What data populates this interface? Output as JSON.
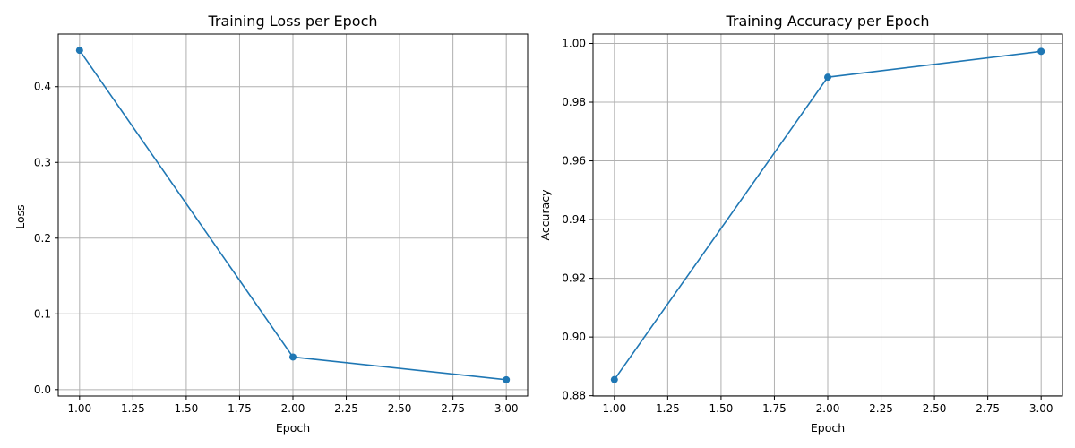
{
  "colors": {
    "line": "#1f77b4",
    "grid": "#b0b0b0"
  },
  "chart_data": [
    {
      "type": "line",
      "title": "Training Loss per Epoch",
      "xlabel": "Epoch",
      "ylabel": "Loss",
      "x": [
        1,
        2,
        3
      ],
      "series": [
        {
          "values": [
            0.448,
            0.043,
            0.013
          ]
        }
      ],
      "xlim": [
        0.9,
        3.1
      ],
      "ylim": [
        -0.0085,
        0.4695
      ],
      "xticks": [
        1.0,
        1.25,
        1.5,
        1.75,
        2.0,
        2.25,
        2.5,
        2.75,
        3.0
      ],
      "xtick_labels": [
        "1.00",
        "1.25",
        "1.50",
        "1.75",
        "2.00",
        "2.25",
        "2.50",
        "2.75",
        "3.00"
      ],
      "yticks": [
        0.0,
        0.1,
        0.2,
        0.3,
        0.4
      ],
      "ytick_labels": [
        "0.0",
        "0.1",
        "0.2",
        "0.3",
        "0.4"
      ],
      "grid": true,
      "marker": "circle"
    },
    {
      "type": "line",
      "title": "Training Accuracy per Epoch",
      "xlabel": "Epoch",
      "ylabel": "Accuracy",
      "x": [
        1,
        2,
        3
      ],
      "series": [
        {
          "values": [
            0.8855,
            0.9885,
            0.9973
          ]
        }
      ],
      "xlim": [
        0.9,
        3.1
      ],
      "ylim": [
        0.8799,
        1.0032
      ],
      "xticks": [
        1.0,
        1.25,
        1.5,
        1.75,
        2.0,
        2.25,
        2.5,
        2.75,
        3.0
      ],
      "xtick_labels": [
        "1.00",
        "1.25",
        "1.50",
        "1.75",
        "2.00",
        "2.25",
        "2.50",
        "2.75",
        "3.00"
      ],
      "yticks": [
        0.88,
        0.9,
        0.92,
        0.94,
        0.96,
        0.98,
        1.0
      ],
      "ytick_labels": [
        "0.88",
        "0.90",
        "0.92",
        "0.94",
        "0.96",
        "0.98",
        "1.00"
      ],
      "grid": true,
      "marker": "circle"
    }
  ]
}
